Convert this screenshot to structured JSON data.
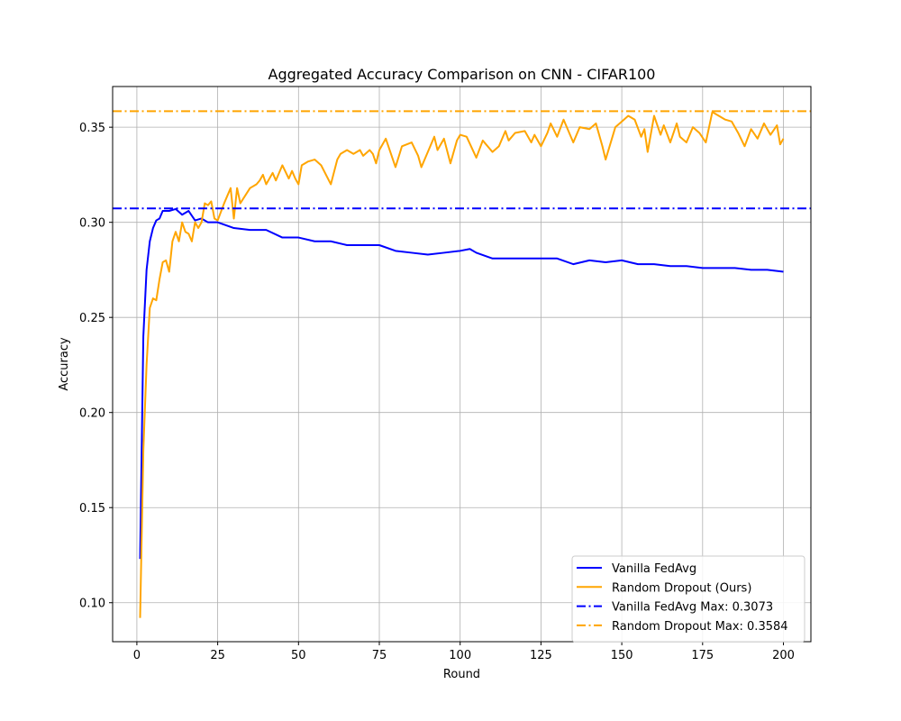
{
  "chart_data": {
    "type": "line",
    "title": "Aggregated Accuracy Comparison on CNN - CIFAR100",
    "xlabel": "Round",
    "ylabel": "Accuracy",
    "xlim": [
      -7.5,
      208.5
    ],
    "ylim": [
      0.0795,
      0.3714
    ],
    "grid": true,
    "legend_position": "lower-right",
    "x_ticks": [
      0,
      25,
      50,
      75,
      100,
      125,
      150,
      175,
      200
    ],
    "x_tick_labels": [
      "0",
      "25",
      "50",
      "75",
      "100",
      "125",
      "150",
      "175",
      "200"
    ],
    "y_ticks": [
      0.1,
      0.15,
      0.2,
      0.25,
      0.3,
      0.35
    ],
    "y_tick_labels": [
      "0.10",
      "0.15",
      "0.20",
      "0.25",
      "0.30",
      "0.35"
    ],
    "series": [
      {
        "name": "Vanilla FedAvg",
        "color": "#0000ff",
        "style": "solid",
        "x": [
          1,
          2,
          3,
          4,
          5,
          6,
          7,
          8,
          9,
          10,
          12,
          14,
          16,
          18,
          20,
          22,
          25,
          30,
          35,
          40,
          45,
          50,
          55,
          60,
          65,
          70,
          75,
          80,
          85,
          90,
          95,
          100,
          103,
          105,
          110,
          115,
          120,
          125,
          130,
          135,
          140,
          145,
          150,
          155,
          160,
          165,
          170,
          175,
          180,
          185,
          190,
          195,
          200
        ],
        "y": [
          0.123,
          0.24,
          0.275,
          0.29,
          0.297,
          0.301,
          0.302,
          0.306,
          0.306,
          0.306,
          0.307,
          0.304,
          0.306,
          0.301,
          0.302,
          0.3,
          0.3,
          0.297,
          0.296,
          0.296,
          0.292,
          0.292,
          0.29,
          0.29,
          0.288,
          0.288,
          0.288,
          0.285,
          0.284,
          0.283,
          0.284,
          0.285,
          0.286,
          0.284,
          0.281,
          0.281,
          0.281,
          0.281,
          0.281,
          0.278,
          0.28,
          0.279,
          0.28,
          0.278,
          0.278,
          0.277,
          0.277,
          0.276,
          0.276,
          0.276,
          0.275,
          0.275,
          0.274
        ]
      },
      {
        "name": "Random Dropout (Ours)",
        "color": "#ffa500",
        "style": "solid",
        "x": [
          1,
          2,
          3,
          4,
          5,
          6,
          7,
          8,
          9,
          10,
          11,
          12,
          13,
          14,
          15,
          16,
          17,
          18,
          19,
          20,
          21,
          22,
          23,
          24,
          25,
          27,
          29,
          30,
          31,
          32,
          35,
          37,
          38,
          39,
          40,
          42,
          43,
          45,
          47,
          48,
          49,
          50,
          51,
          53,
          55,
          57,
          60,
          62,
          63,
          65,
          67,
          69,
          70,
          72,
          73,
          74,
          75,
          77,
          80,
          82,
          85,
          87,
          88,
          90,
          92,
          93,
          95,
          97,
          99,
          100,
          102,
          105,
          107,
          110,
          112,
          114,
          115,
          117,
          120,
          122,
          123,
          125,
          127,
          128,
          130,
          132,
          135,
          137,
          140,
          142,
          144,
          145,
          148,
          150,
          152,
          154,
          156,
          157,
          158,
          160,
          162,
          163,
          165,
          167,
          168,
          170,
          172,
          174,
          176,
          178,
          180,
          182,
          184,
          186,
          188,
          190,
          192,
          194,
          196,
          198,
          199,
          200
        ],
        "y": [
          0.092,
          0.18,
          0.225,
          0.255,
          0.26,
          0.259,
          0.27,
          0.279,
          0.28,
          0.274,
          0.29,
          0.295,
          0.29,
          0.3,
          0.295,
          0.294,
          0.29,
          0.3,
          0.297,
          0.3,
          0.31,
          0.309,
          0.311,
          0.302,
          0.301,
          0.31,
          0.318,
          0.302,
          0.318,
          0.31,
          0.318,
          0.32,
          0.322,
          0.325,
          0.32,
          0.326,
          0.322,
          0.33,
          0.323,
          0.327,
          0.323,
          0.32,
          0.33,
          0.332,
          0.333,
          0.33,
          0.32,
          0.333,
          0.336,
          0.338,
          0.336,
          0.338,
          0.335,
          0.338,
          0.336,
          0.331,
          0.338,
          0.344,
          0.329,
          0.34,
          0.342,
          0.335,
          0.329,
          0.337,
          0.345,
          0.338,
          0.344,
          0.331,
          0.343,
          0.346,
          0.345,
          0.334,
          0.343,
          0.337,
          0.34,
          0.348,
          0.343,
          0.347,
          0.348,
          0.342,
          0.346,
          0.34,
          0.347,
          0.352,
          0.345,
          0.354,
          0.342,
          0.35,
          0.349,
          0.352,
          0.34,
          0.333,
          0.35,
          0.353,
          0.356,
          0.354,
          0.345,
          0.349,
          0.337,
          0.356,
          0.346,
          0.351,
          0.342,
          0.352,
          0.345,
          0.342,
          0.35,
          0.347,
          0.342,
          0.358,
          0.356,
          0.354,
          0.353,
          0.347,
          0.34,
          0.349,
          0.344,
          0.352,
          0.346,
          0.351,
          0.341,
          0.344
        ]
      },
      {
        "name": "Vanilla FedAvg Max: 0.3073",
        "color": "#0000ff",
        "style": "dashdot",
        "hline": 0.3073
      },
      {
        "name": "Random Dropout Max: 0.3584",
        "color": "#ffa500",
        "style": "dashdot",
        "hline": 0.3584
      }
    ]
  }
}
